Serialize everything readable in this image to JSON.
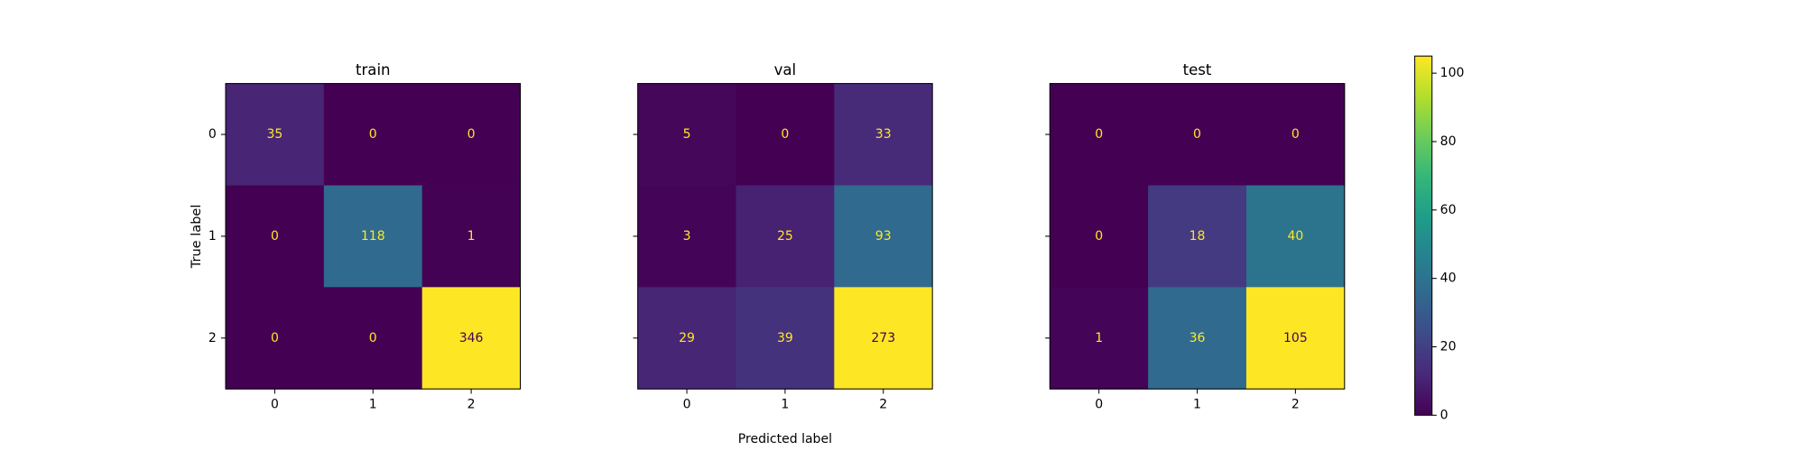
{
  "chart_data": [
    {
      "type": "heatmap",
      "title": "train",
      "x_categories": [
        "0",
        "1",
        "2"
      ],
      "y_categories": [
        "0",
        "1",
        "2"
      ],
      "ylabel": "True label",
      "colormap": "viridis",
      "values": [
        [
          35,
          0,
          0
        ],
        [
          0,
          118,
          1
        ],
        [
          0,
          0,
          346
        ]
      ]
    },
    {
      "type": "heatmap",
      "title": "val",
      "x_categories": [
        "0",
        "1",
        "2"
      ],
      "xlabel": "Predicted label",
      "colormap": "viridis",
      "values": [
        [
          5,
          0,
          33
        ],
        [
          3,
          25,
          93
        ],
        [
          29,
          39,
          273
        ]
      ]
    },
    {
      "type": "heatmap",
      "title": "test",
      "x_categories": [
        "0",
        "1",
        "2"
      ],
      "colormap": "viridis",
      "values": [
        [
          0,
          0,
          0
        ],
        [
          0,
          18,
          40
        ],
        [
          1,
          36,
          105
        ]
      ]
    },
    {
      "type": "colorbar",
      "colormap": "viridis",
      "clim": [
        0,
        105
      ],
      "ticks": [
        0,
        20,
        40,
        60,
        80,
        100
      ]
    }
  ]
}
